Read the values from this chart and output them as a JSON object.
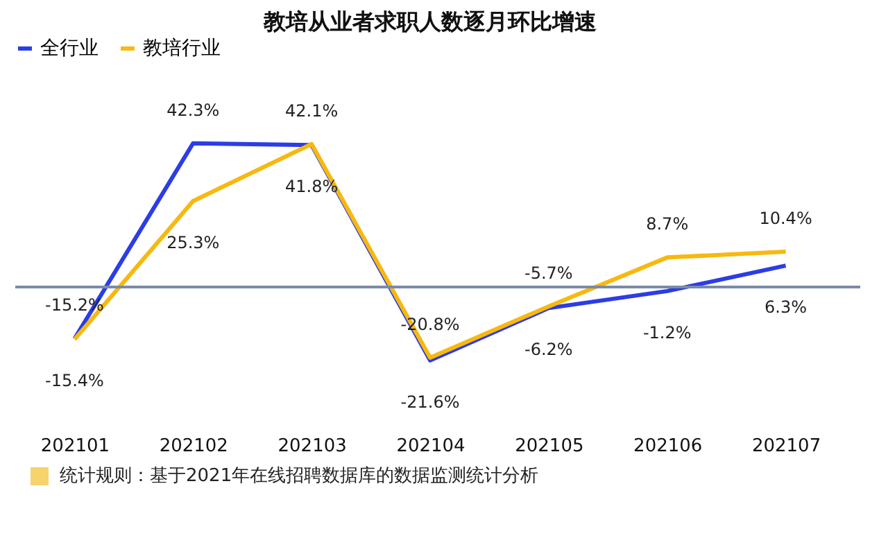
{
  "chart_data": {
    "type": "line",
    "title": "教培从业者求职人数逐月环比增速",
    "categories": [
      "202101",
      "202102",
      "202103",
      "202104",
      "202105",
      "202106",
      "202107"
    ],
    "series": [
      {
        "name": "全行业",
        "color": "#2b3de6",
        "values": [
          -15.2,
          42.3,
          41.8,
          -21.6,
          -6.2,
          -1.2,
          6.3
        ],
        "value_labels": [
          "-15.2%",
          "42.3%",
          "41.8%",
          "-21.6%",
          "-6.2%",
          "-1.2%",
          "6.3%"
        ]
      },
      {
        "name": "教培行业",
        "color": "#f7b90f",
        "values": [
          -15.4,
          25.3,
          42.1,
          -20.8,
          -5.7,
          8.7,
          10.4
        ],
        "value_labels": [
          "-15.4%",
          "25.3%",
          "42.1%",
          "-20.8%",
          "-5.7%",
          "8.7%",
          "10.4%"
        ]
      }
    ],
    "ref_lines": [
      {
        "axis": "y",
        "value": 0,
        "color": "#7a8aa8"
      }
    ],
    "legend": "top",
    "marker": "none",
    "line_style": "solid",
    "annotations": [
      "统计规则：基于2021年在线招聘数据库的数据监测统计分析"
    ]
  }
}
